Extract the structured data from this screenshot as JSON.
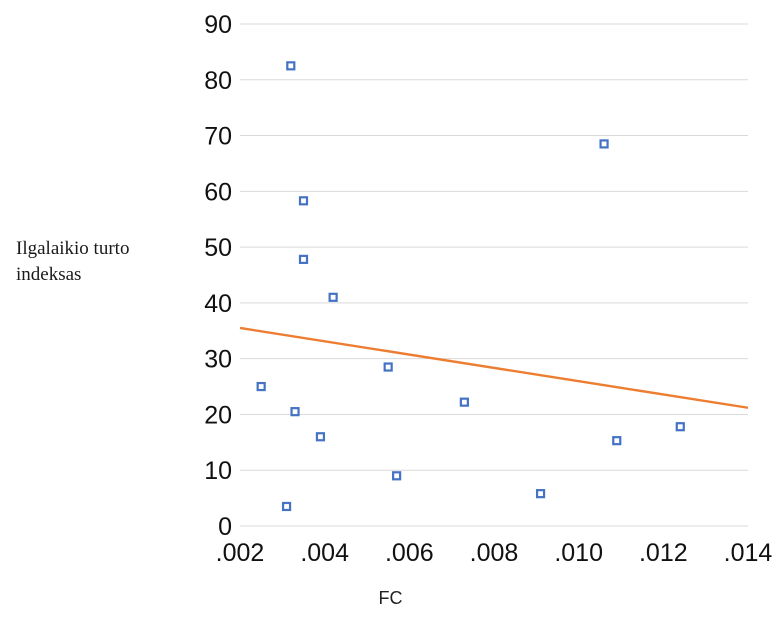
{
  "chart_data": {
    "type": "scatter",
    "title": "",
    "xlabel": "FC",
    "ylabel": "Ilgalaikio turto\nindeksas",
    "xlim": [
      0.002,
      0.014
    ],
    "ylim": [
      0,
      90
    ],
    "x_tick_labels": [
      ".002",
      ".004",
      ".006",
      ".008",
      ".010",
      ".012",
      ".014"
    ],
    "y_tick_labels": [
      "0",
      "10",
      "20",
      "30",
      "40",
      "50",
      "60",
      "70",
      "80",
      "90"
    ],
    "grid": "horizontal",
    "legend": "none",
    "series": [
      {
        "points": [
          {
            "x": 0.0025,
            "y": 25.0
          },
          {
            "x": 0.0031,
            "y": 3.5
          },
          {
            "x": 0.0032,
            "y": 82.5
          },
          {
            "x": 0.0033,
            "y": 20.5
          },
          {
            "x": 0.0035,
            "y": 58.3
          },
          {
            "x": 0.0035,
            "y": 47.8
          },
          {
            "x": 0.0039,
            "y": 16.0
          },
          {
            "x": 0.0042,
            "y": 41.0
          },
          {
            "x": 0.0055,
            "y": 28.5
          },
          {
            "x": 0.0057,
            "y": 9.0
          },
          {
            "x": 0.0073,
            "y": 22.2
          },
          {
            "x": 0.0091,
            "y": 5.8
          },
          {
            "x": 0.0106,
            "y": 68.5
          },
          {
            "x": 0.0109,
            "y": 15.3
          },
          {
            "x": 0.0124,
            "y": 17.8
          }
        ]
      }
    ],
    "trendline": {
      "x": [
        0.002,
        0.014
      ],
      "y": [
        35.5,
        21.2
      ]
    },
    "colors": {
      "points": "#4472c4",
      "trendline": "#ed7d31",
      "grid": "#d9d9d9",
      "tick_text": "#111111"
    }
  }
}
